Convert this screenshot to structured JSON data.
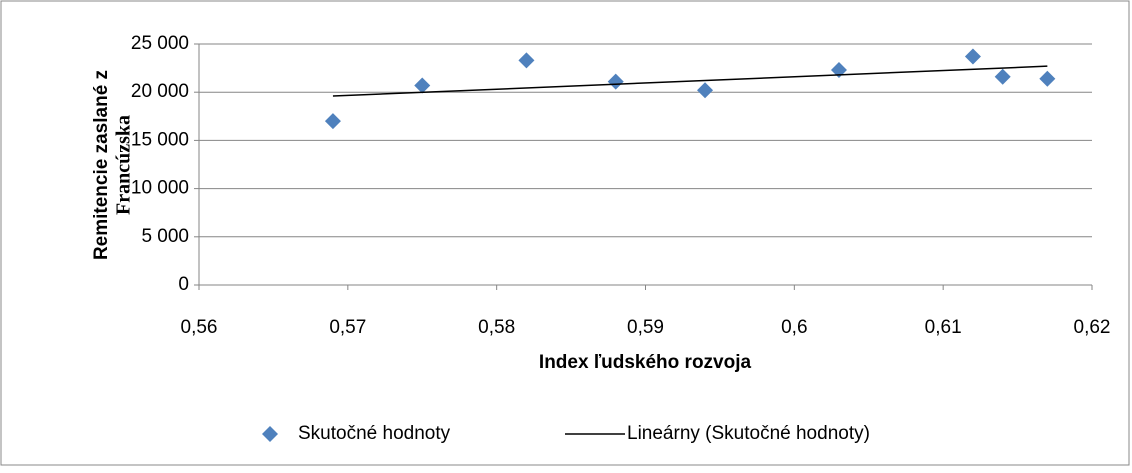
{
  "chart_data": {
    "type": "scatter",
    "xlabel": "Index ľudského rozvoja",
    "ylabel": [
      "Remitencie zaslané z",
      "Francúzska"
    ],
    "series": [
      {
        "name": "Skutočné hodnoty",
        "color": "#4f81bd",
        "x": [
          0.569,
          0.575,
          0.582,
          0.588,
          0.594,
          0.603,
          0.612,
          0.614,
          0.617
        ],
        "values": [
          17000,
          20700,
          23300,
          21100,
          20200,
          22300,
          23700,
          21600,
          21400
        ]
      }
    ],
    "trendline": {
      "name": "Lineárny (Skutočné hodnoty)",
      "color": "#000000",
      "x": [
        0.569,
        0.617
      ],
      "values": [
        19600,
        22700
      ]
    },
    "xlim": [
      0.56,
      0.62
    ],
    "xticks": [
      {
        "value": 0.56,
        "label": "0,56"
      },
      {
        "value": 0.57,
        "label": "0,57"
      },
      {
        "value": 0.58,
        "label": "0,58"
      },
      {
        "value": 0.59,
        "label": "0,59"
      },
      {
        "value": 0.6,
        "label": "0,6"
      },
      {
        "value": 0.61,
        "label": "0,61"
      },
      {
        "value": 0.62,
        "label": "0,62"
      }
    ],
    "ylim": [
      0,
      25000
    ],
    "yticks": [
      0,
      {
        "value": 5000,
        "label": "5 000"
      },
      {
        "value": 10000,
        "label": "10 000"
      },
      {
        "value": 15000,
        "label": "15 000"
      },
      {
        "value": 20000,
        "label": "20 000"
      },
      {
        "value": 25000,
        "label": "25 000"
      }
    ],
    "grid": true,
    "legend": "bottom"
  }
}
